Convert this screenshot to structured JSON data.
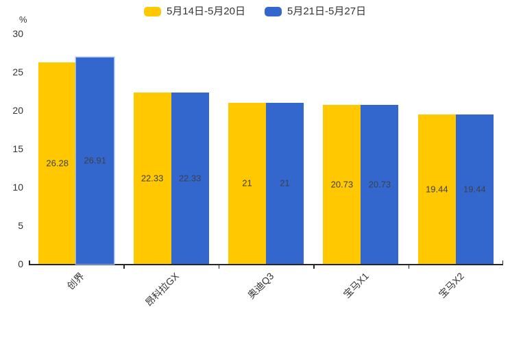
{
  "chart_data": {
    "type": "bar",
    "categories": [
      "创界",
      "昂科拉GX",
      "奥迪Q3",
      "宝马X1",
      "宝马X2"
    ],
    "series": [
      {
        "name": "5月14日-5月20日",
        "color": "#FFC800",
        "values": [
          26.28,
          22.33,
          21,
          20.73,
          19.44
        ]
      },
      {
        "name": "5月21日-5月27日",
        "color": "#3467CE",
        "values": [
          26.91,
          22.33,
          21,
          20.73,
          19.44
        ]
      }
    ],
    "ylabel": "%",
    "ylim": [
      0,
      30
    ],
    "yticks": [
      0,
      5,
      10,
      15,
      20,
      25,
      30
    ],
    "grid": false,
    "legend_position": "top-center",
    "bar_label_position": "inside-middle",
    "xtick_label_rotation_deg": 45,
    "highlighted_bar": {
      "series_index": 1,
      "category_index": 0
    }
  },
  "colors": {
    "axis_line": "#262626",
    "text": "#333333",
    "bar_value_text": "#3d4148",
    "background": "#ffffff"
  }
}
